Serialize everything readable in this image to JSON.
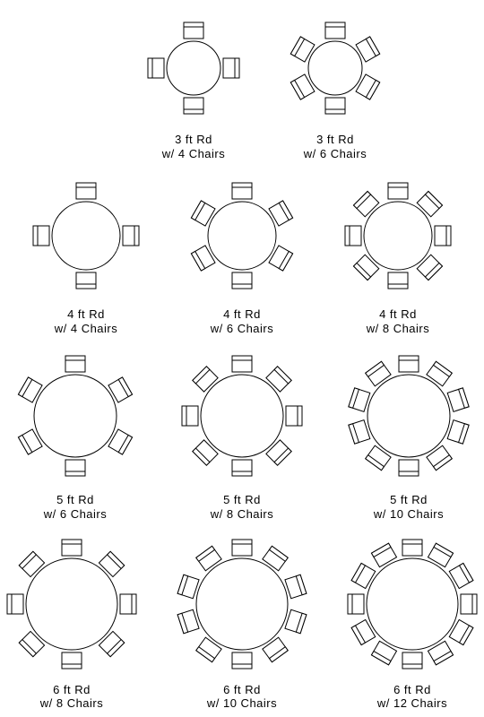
{
  "stroke_color": "#000000",
  "background_color": "#ffffff",
  "stroke_width": 1,
  "label_fontsize": 13,
  "rows": [
    {
      "shift": true,
      "cells": [
        {
          "table_r": 30,
          "chairs": 4,
          "svg_size": 140,
          "label1": "3 ft Rd",
          "label2": "w/ 4 Chairs"
        },
        {
          "table_r": 30,
          "chairs": 6,
          "svg_size": 140,
          "label1": "3 ft Rd",
          "label2": "w/ 6 Chairs"
        }
      ]
    },
    {
      "shift": false,
      "cells": [
        {
          "table_r": 38,
          "chairs": 4,
          "svg_size": 156,
          "label1": "4 ft Rd",
          "label2": "w/ 4 Chairs"
        },
        {
          "table_r": 38,
          "chairs": 6,
          "svg_size": 156,
          "label1": "4 ft Rd",
          "label2": "w/ 6 Chairs"
        },
        {
          "table_r": 38,
          "chairs": 8,
          "svg_size": 156,
          "label1": "4 ft Rd",
          "label2": "w/ 8 Chairs"
        }
      ]
    },
    {
      "shift": false,
      "cells": [
        {
          "table_r": 46,
          "chairs": 6,
          "svg_size": 168,
          "label1": "5 ft Rd",
          "label2": "w/ 6 Chairs"
        },
        {
          "table_r": 46,
          "chairs": 8,
          "svg_size": 168,
          "label1": "5 ft Rd",
          "label2": "w/ 8 Chairs"
        },
        {
          "table_r": 46,
          "chairs": 10,
          "svg_size": 168,
          "label1": "5 ft Rd",
          "label2": "w/ 10 Chairs"
        }
      ]
    },
    {
      "shift": false,
      "cells": [
        {
          "table_r": 51,
          "chairs": 8,
          "svg_size": 172,
          "label1": "6 ft Rd",
          "label2": "w/ 8 Chairs"
        },
        {
          "table_r": 51,
          "chairs": 10,
          "svg_size": 172,
          "label1": "6 ft Rd",
          "label2": "w/ 10 Chairs"
        },
        {
          "table_r": 51,
          "chairs": 12,
          "svg_size": 172,
          "label1": "6 ft Rd",
          "label2": "w/ 12 Chairs"
        }
      ]
    }
  ],
  "chair": {
    "width": 22,
    "depth": 18,
    "back_depth": 5,
    "gap": 3
  }
}
